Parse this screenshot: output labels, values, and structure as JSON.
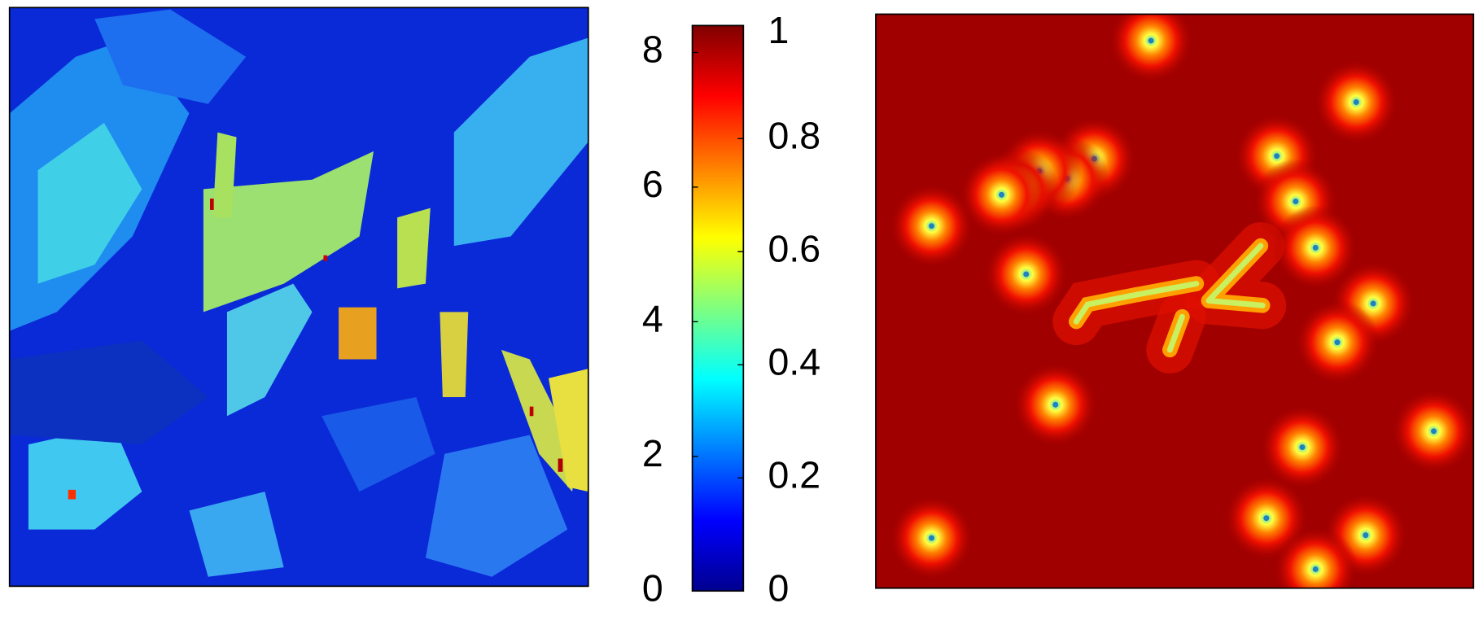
{
  "chart_data": {
    "type": "heatmap",
    "ylim": [
      0,
      8.4
    ],
    "yticks": [
      0,
      2,
      4,
      6,
      8
    ],
    "y2lim": [
      0,
      1
    ],
    "y2ticks": [
      0,
      0.2,
      0.4,
      0.6,
      0.8,
      1
    ]
  }
}
